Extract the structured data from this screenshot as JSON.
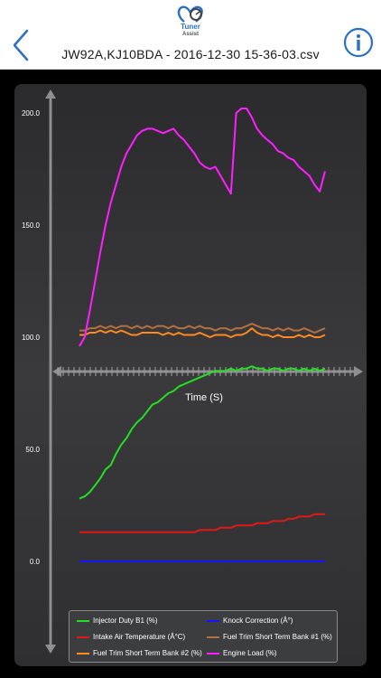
{
  "app": {
    "logo_text": "Tuner Assist",
    "file_title": "JW92A,KJ10BDA - 2016-12-30 15-36-03.csv"
  },
  "chart_data": {
    "type": "line",
    "xlabel": "Time (S)",
    "y_axis_labels": [
      "200.0",
      "150.0",
      "100.0",
      "50.0",
      "0.0"
    ],
    "grid": false,
    "legend_position": "bottom",
    "series": [
      {
        "name": "Injector Duty B1 (%)",
        "color": "#22e022",
        "values": [
          28,
          29,
          31,
          34,
          37,
          41,
          43,
          48,
          52,
          55,
          59,
          62,
          64,
          67,
          70,
          71,
          73,
          75,
          76,
          78,
          79,
          80,
          81,
          82,
          83,
          84,
          85,
          85,
          85,
          86,
          85,
          86,
          86,
          87,
          86,
          86,
          85,
          86,
          86,
          85,
          86,
          86,
          85,
          86,
          85,
          86,
          85,
          86
        ]
      },
      {
        "name": "Knock Correction (Â°)",
        "color": "#1414ff",
        "values": [
          0,
          0,
          0,
          0,
          0,
          0,
          0,
          0,
          0,
          0,
          0,
          0,
          0,
          0,
          0,
          0,
          0,
          0,
          0,
          0,
          0,
          0,
          0,
          0,
          0,
          0,
          0,
          0,
          0,
          0,
          0,
          0,
          0,
          0,
          0,
          0,
          0,
          0,
          0,
          0,
          0,
          0,
          0,
          0,
          0,
          0,
          0,
          0
        ]
      },
      {
        "name": "Intake Air Temperature (Â°C)",
        "color": "#e01818",
        "values": [
          13,
          13,
          13,
          13,
          13,
          13,
          13,
          13,
          13,
          13,
          13,
          13,
          13,
          13,
          13,
          13,
          13,
          13,
          13,
          13,
          13,
          13,
          13,
          14,
          14,
          14,
          14,
          15,
          15,
          15,
          16,
          16,
          16,
          16,
          17,
          17,
          17,
          18,
          18,
          18,
          19,
          19,
          20,
          20,
          20,
          21,
          21,
          21
        ]
      },
      {
        "name": "Fuel Trim Short Term Bank #1 (%)",
        "color": "#b07040",
        "values": [
          103,
          103,
          104,
          104,
          105,
          104,
          105,
          104,
          105,
          105,
          104,
          105,
          104,
          105,
          104,
          105,
          105,
          104,
          105,
          104,
          104,
          105,
          104,
          105,
          104,
          104,
          103,
          104,
          104,
          103,
          104,
          104,
          105,
          106,
          105,
          104,
          104,
          103,
          104,
          103,
          104,
          103,
          103,
          104,
          103,
          102,
          103,
          104
        ]
      },
      {
        "name": "Fuel Trim Short Term Bank #2 (%)",
        "color": "#ff8a1e",
        "values": [
          101,
          101,
          102,
          102,
          103,
          102,
          103,
          102,
          103,
          102,
          101,
          101,
          102,
          102,
          102,
          102,
          101,
          102,
          101,
          102,
          101,
          101,
          101,
          102,
          101,
          100,
          101,
          101,
          101,
          100,
          101,
          101,
          102,
          104,
          102,
          101,
          101,
          100,
          101,
          100,
          100,
          100,
          101,
          100,
          101,
          100,
          100,
          101
        ]
      },
      {
        "name": "Engine Load (%)",
        "color": "#ff1eff",
        "values": [
          96,
          100,
          112,
          125,
          138,
          150,
          160,
          168,
          176,
          182,
          186,
          190,
          192,
          193,
          193,
          192,
          191,
          192,
          193,
          190,
          188,
          185,
          182,
          178,
          176,
          175,
          176,
          172,
          168,
          164,
          200,
          202,
          202,
          198,
          193,
          190,
          188,
          186,
          183,
          182,
          180,
          179,
          176,
          174,
          172,
          168,
          165,
          174
        ]
      }
    ]
  }
}
